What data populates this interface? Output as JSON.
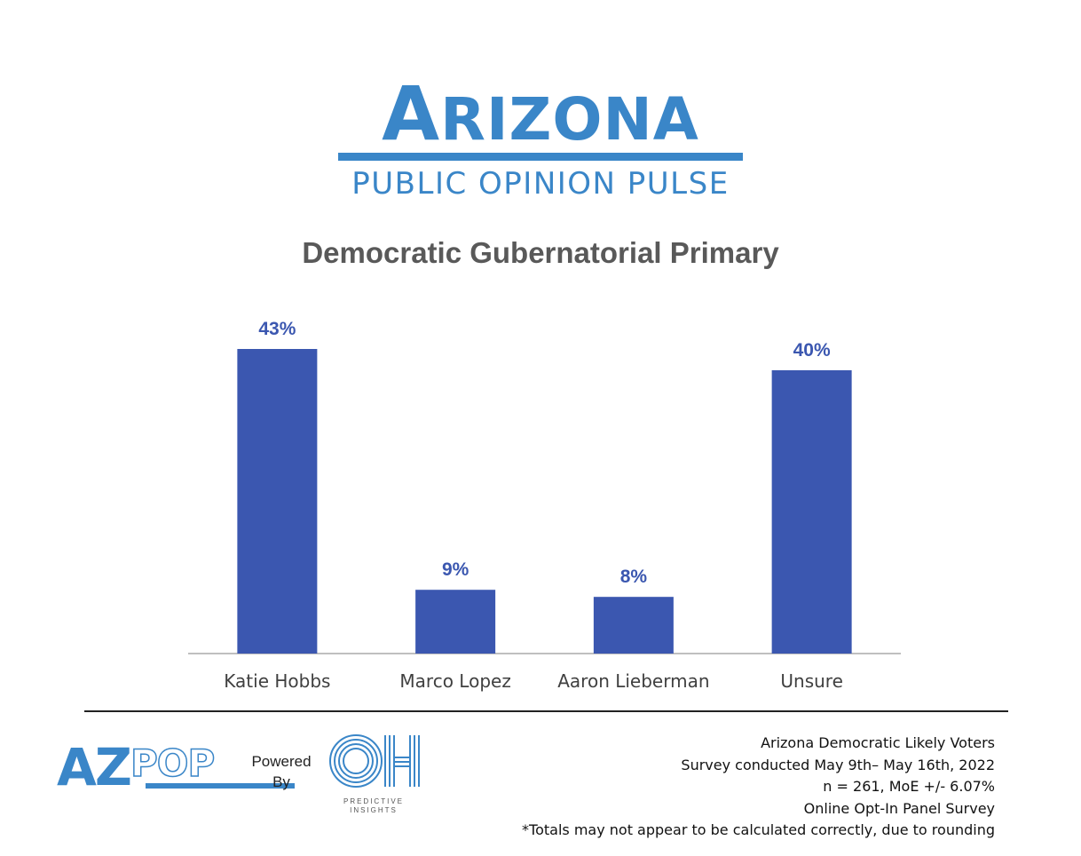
{
  "header": {
    "brand_big_a": "A",
    "brand_rest": "RIZONA",
    "brand_sub": "PUBLIC OPINION PULSE"
  },
  "chart_data": {
    "type": "bar",
    "title": "Democratic Gubernatorial Primary",
    "categories": [
      "Katie Hobbs",
      "Marco Lopez",
      "Aaron Lieberman",
      "Unsure"
    ],
    "values": [
      43,
      9,
      8,
      40
    ],
    "data_labels": [
      "43%",
      "9%",
      "8%",
      "40%"
    ],
    "ylim": [
      0,
      43
    ],
    "grid": false,
    "legend": "none",
    "bar_color": "#3b57b0"
  },
  "footer": {
    "logo_az": "AZ",
    "logo_pop": "POP",
    "powered_by": [
      "Powered",
      "By"
    ],
    "predictive": [
      "PREDICTIVE",
      "INSIGHTS"
    ],
    "notes": [
      "Arizona Democratic Likely Voters",
      "Survey conducted May 9th– May 16th, 2022",
      "n = 261, MoE +/- 6.07%",
      "Online Opt-In Panel Survey",
      "*Totals may not appear to be calculated correctly, due to rounding"
    ]
  },
  "colors": {
    "brand": "#3a86c8",
    "bar": "#3b57b0",
    "title": "#595959"
  }
}
